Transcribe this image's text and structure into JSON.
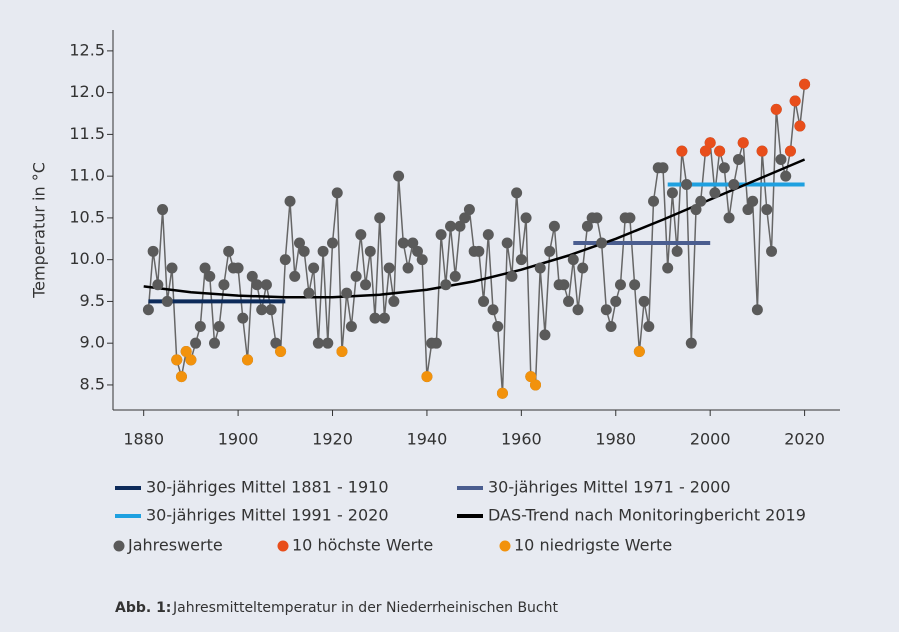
{
  "chart_data": {
    "type": "line",
    "y_label": "Temperatur in °C",
    "caption": {
      "label": "Abb. 1:",
      "text": "Jahresmitteltemperatur in der Niederrheinischen Bucht"
    },
    "xlim": [
      1873.5,
      2027.5
    ],
    "xticks": [
      1880,
      1900,
      1920,
      1940,
      1960,
      1980,
      2000,
      2020
    ],
    "ylim": [
      8.2,
      12.75
    ],
    "yticks": [
      8.5,
      {
        "value": 9,
        "label": "9.0"
      },
      9.5,
      {
        "value": 10,
        "label": "10.0"
      },
      10.5,
      {
        "value": 11,
        "label": "11.0"
      },
      11.5,
      {
        "value": 12,
        "label": "12.0"
      },
      12.5
    ],
    "means": [
      {
        "name": "30-jähriges Mittel 1881 - 1910",
        "color": "#0d2b5a",
        "x": [
          1881,
          1910
        ],
        "values": [
          9.5,
          9.5
        ]
      },
      {
        "name": "30-jähriges Mittel 1971 - 2000",
        "color": "#4a5d8f",
        "x": [
          1971,
          2000
        ],
        "values": [
          10.2,
          10.2
        ]
      },
      {
        "name": "30-jähriges Mittel 1991 - 2020",
        "color": "#1ea0e0",
        "x": [
          1991,
          2020
        ],
        "values": [
          10.9,
          10.9
        ]
      }
    ],
    "trend": {
      "name": "DAS-Trend nach Monitoringbericht 2019",
      "color": "#000000",
      "x": [
        1880,
        1890,
        1900,
        1910,
        1920,
        1930,
        1940,
        1950,
        1960,
        1970,
        1980,
        1990,
        2000,
        2010,
        2020
      ],
      "values": [
        9.68,
        9.61,
        9.57,
        9.55,
        9.55,
        9.58,
        9.64,
        9.74,
        9.88,
        10.05,
        10.25,
        10.48,
        10.72,
        10.96,
        11.2
      ]
    },
    "series": [
      {
        "name": "Jahreswerte",
        "color": "#5a5a5a",
        "x": [
          1881,
          1882,
          1883,
          1884,
          1885,
          1886,
          1887,
          1888,
          1889,
          1890,
          1891,
          1892,
          1893,
          1894,
          1895,
          1896,
          1897,
          1898,
          1899,
          1900,
          1901,
          1902,
          1903,
          1904,
          1905,
          1906,
          1907,
          1908,
          1909,
          1910,
          1911,
          1912,
          1913,
          1914,
          1915,
          1916,
          1917,
          1918,
          1919,
          1920,
          1921,
          1922,
          1923,
          1924,
          1925,
          1926,
          1927,
          1928,
          1929,
          1930,
          1931,
          1932,
          1933,
          1934,
          1935,
          1936,
          1937,
          1938,
          1939,
          1940,
          1941,
          1942,
          1943,
          1944,
          1945,
          1946,
          1947,
          1948,
          1949,
          1950,
          1951,
          1952,
          1953,
          1954,
          1955,
          1956,
          1957,
          1958,
          1959,
          1960,
          1961,
          1962,
          1963,
          1964,
          1965,
          1966,
          1967,
          1968,
          1969,
          1970,
          1971,
          1972,
          1973,
          1974,
          1975,
          1976,
          1977,
          1978,
          1979,
          1980,
          1981,
          1982,
          1983,
          1984,
          1985,
          1986,
          1987,
          1988,
          1989,
          1990,
          1991,
          1992,
          1993,
          1994,
          1995,
          1996,
          1997,
          1998,
          1999,
          2000,
          2001,
          2002,
          2003,
          2004,
          2005,
          2006,
          2007,
          2008,
          2009,
          2010,
          2011,
          2012,
          2013,
          2014,
          2015,
          2016,
          2017,
          2018,
          2019,
          2020
        ],
        "values": [
          9.4,
          10.1,
          9.7,
          10.6,
          9.5,
          9.9,
          8.8,
          8.6,
          8.9,
          8.8,
          9.0,
          9.2,
          9.9,
          9.8,
          9.0,
          9.2,
          9.7,
          10.1,
          9.9,
          9.9,
          9.3,
          8.8,
          9.8,
          9.7,
          9.4,
          9.7,
          9.4,
          9.0,
          8.9,
          10.0,
          10.7,
          9.8,
          10.2,
          10.1,
          9.6,
          9.9,
          9.0,
          10.1,
          9.0,
          10.2,
          10.8,
          8.9,
          9.6,
          9.2,
          9.8,
          10.3,
          9.7,
          10.1,
          9.3,
          10.5,
          9.3,
          9.9,
          9.5,
          11.0,
          10.2,
          9.9,
          10.2,
          10.1,
          10.0,
          8.6,
          9.0,
          9.0,
          10.3,
          9.7,
          10.4,
          9.8,
          10.4,
          10.5,
          10.6,
          10.1,
          10.1,
          9.5,
          10.3,
          9.4,
          9.2,
          8.4,
          10.2,
          9.8,
          10.8,
          10.0,
          10.5,
          8.6,
          8.5,
          9.9,
          9.1,
          10.1,
          10.4,
          9.7,
          9.7,
          9.5,
          10.0,
          9.4,
          9.9,
          10.4,
          10.5,
          10.5,
          10.2,
          9.4,
          9.2,
          9.5,
          9.7,
          10.5,
          10.5,
          9.7,
          8.9,
          9.5,
          9.2,
          10.7,
          11.1,
          11.1,
          9.9,
          10.8,
          10.1,
          11.3,
          10.9,
          9.0,
          10.6,
          10.7,
          11.3,
          11.4,
          10.8,
          11.3,
          11.1,
          10.5,
          10.9,
          11.2,
          11.4,
          10.6,
          10.7,
          9.4,
          11.3,
          10.6,
          10.1,
          11.8,
          11.2,
          11.0,
          11.3,
          11.9,
          11.6,
          12.1
        ]
      },
      {
        "name": "10 höchste Werte",
        "color": "#e84e1b",
        "x": [
          1994,
          1999,
          2000,
          2002,
          2007,
          2011,
          2014,
          2017,
          2018,
          2019,
          2020
        ],
        "values": [
          11.3,
          11.3,
          11.4,
          11.3,
          11.4,
          11.3,
          11.8,
          11.3,
          11.9,
          11.6,
          12.1
        ]
      },
      {
        "name": "10 niedrigste Werte",
        "color": "#f2920c",
        "x": [
          1887,
          1888,
          1889,
          1890,
          1902,
          1909,
          1922,
          1940,
          1956,
          1962,
          1963,
          1985
        ],
        "values": [
          8.8,
          8.6,
          8.9,
          8.8,
          8.8,
          8.9,
          8.9,
          8.6,
          8.4,
          8.6,
          8.5,
          8.9
        ]
      }
    ]
  }
}
